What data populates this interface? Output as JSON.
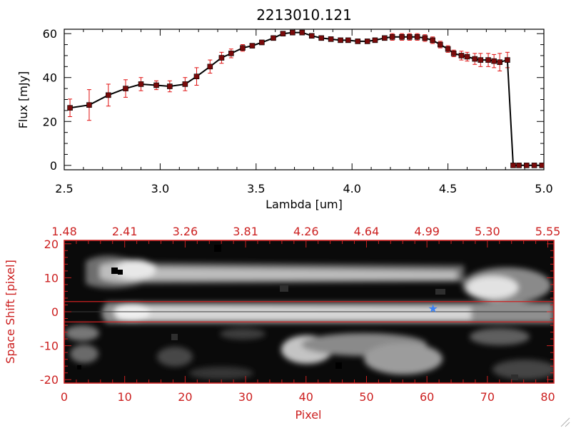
{
  "colors": {
    "axis_black": "#000000",
    "axis_red": "#cc2020",
    "errorbar": "#e01010",
    "marker": "#7a0a0a",
    "star": "#3b82f6"
  },
  "chart_data": [
    {
      "type": "line",
      "title": "2213010.121",
      "xlabel": "Lambda [um]",
      "ylabel": "Flux [mJy]",
      "xlim": [
        2.5,
        5.0
      ],
      "ylim": [
        -2,
        62
      ],
      "xticks": [
        "2.5",
        "3.0",
        "3.5",
        "4.0",
        "4.5",
        "5.0"
      ],
      "yticks": [
        "0",
        "20",
        "40",
        "60"
      ],
      "series": [
        {
          "x": [
            2.53,
            2.63,
            2.73,
            2.82,
            2.9,
            2.98,
            3.05,
            3.13,
            3.19,
            3.26,
            3.32,
            3.37,
            3.43,
            3.48,
            3.53,
            3.59,
            3.64,
            3.69,
            3.74,
            3.79,
            3.84,
            3.89,
            3.94,
            3.98,
            4.03,
            4.08,
            4.12,
            4.17,
            4.21,
            4.26,
            4.3,
            4.34,
            4.38,
            4.42,
            4.46,
            4.5,
            4.53,
            4.57,
            4.6,
            4.64,
            4.67,
            4.71,
            4.74,
            4.77,
            4.81,
            4.84,
            4.87,
            4.91,
            4.95,
            4.99
          ],
          "y": [
            26.2,
            27.5,
            32,
            35,
            37,
            36.5,
            36,
            37,
            40.5,
            45,
            49,
            51,
            53.5,
            54.5,
            56,
            58,
            60,
            60.5,
            60.5,
            59,
            58,
            57.5,
            57,
            57,
            56.5,
            56.5,
            57,
            58,
            58.5,
            58.5,
            58.5,
            58.5,
            58,
            57,
            55,
            53,
            51,
            50,
            49.5,
            48.5,
            48,
            48,
            47.5,
            47,
            48,
            0,
            0,
            0,
            0,
            0
          ],
          "err": [
            4,
            7,
            5,
            4,
            3,
            2,
            2.5,
            3,
            4,
            3,
            2.5,
            2,
            1.5,
            1,
            1,
            1,
            1,
            1,
            1,
            1,
            1,
            1,
            1,
            1,
            1,
            1,
            1,
            1,
            1.5,
            1.5,
            1.5,
            1.5,
            1.5,
            1.5,
            1.5,
            1.5,
            1.5,
            2,
            2,
            2.5,
            3,
            3,
            3,
            4,
            3.5,
            0,
            0,
            0,
            0,
            0
          ]
        }
      ]
    },
    {
      "type": "heatmap",
      "xlabel": "Pixel",
      "ylabel": "Space Shift [pixel]",
      "xlim": [
        0,
        81
      ],
      "ylim": [
        -21,
        21
      ],
      "xticks": [
        "0",
        "10",
        "20",
        "30",
        "40",
        "50",
        "60",
        "70",
        "80"
      ],
      "yticks": [
        "-20",
        "-10",
        "0",
        "10",
        "20"
      ],
      "top_xticks": [
        "1.48",
        "2.41",
        "3.26",
        "3.81",
        "4.26",
        "4.64",
        "4.99",
        "5.30",
        "5.55"
      ],
      "extraction_band": [
        -3,
        3
      ],
      "star_marker": {
        "x": 61,
        "y": 1
      }
    }
  ]
}
